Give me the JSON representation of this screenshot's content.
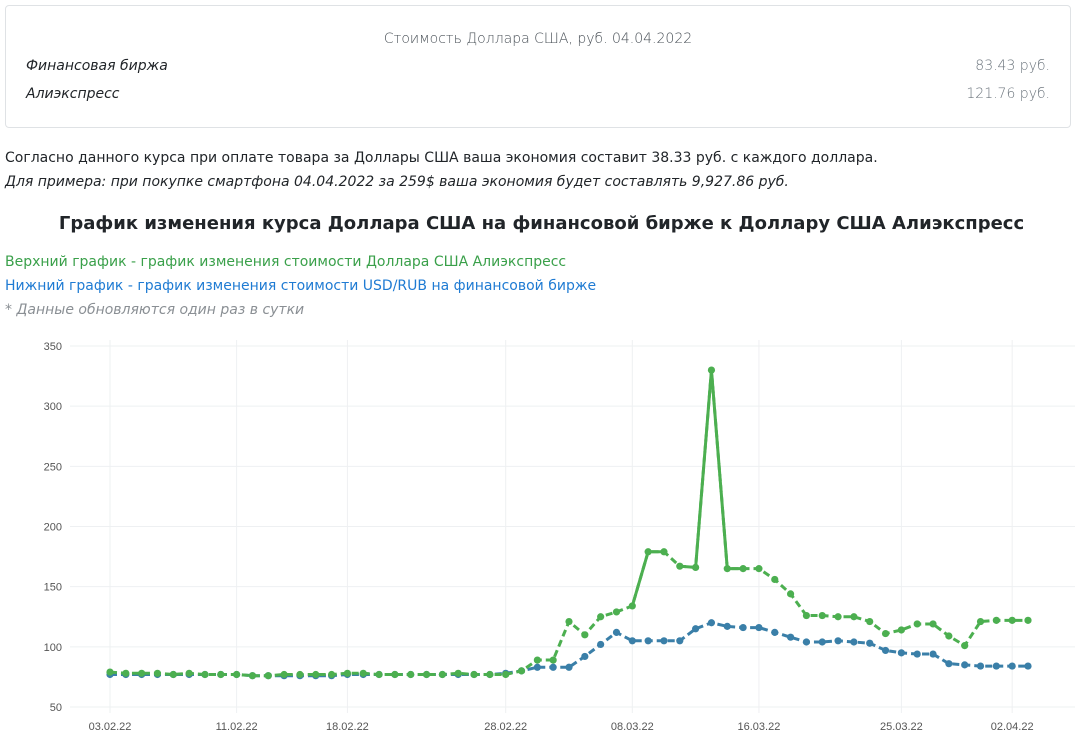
{
  "rate_card": {
    "title": "Стоимость Доллара США, руб. 04.04.2022",
    "rows": [
      {
        "name": "Финансовая биржа",
        "value": "83.43 руб."
      },
      {
        "name": "Алиэкспресс",
        "value": "121.76 руб."
      }
    ]
  },
  "savings_text": "Согласно данного курса при оплате товара за Доллары США ваша экономия составит 38.33 руб. с каждого доллара.",
  "example_text": "Для примера: при покупке смартфона 04.04.2022 за 259$ ваша экономия будет составлять 9,927.86 руб.",
  "chart_title": "График изменения курса Доллара США на финансовой бирже к Доллару США Алиэкспресс",
  "legend": {
    "green": "Верхний график - график изменения стоимости Доллара США Алиэкспресс",
    "blue": "Нижний график - график изменения стоимости USD/RUB на финансовой бирже",
    "note": "* Данные обновляются один раз в сутки"
  },
  "colors": {
    "aliexpress": "#4caf50",
    "exchange": "#3a7fa8"
  },
  "chart_data": {
    "type": "line",
    "x_ticks": [
      "03.02.22",
      "11.02.22",
      "18.02.22",
      "28.02.22",
      "08.03.22",
      "16.03.22",
      "25.03.22",
      "02.04.22"
    ],
    "y_ticks": [
      50,
      100,
      150,
      200,
      250,
      300,
      350
    ],
    "ylim": [
      45,
      355
    ],
    "grid": true,
    "series": [
      {
        "key": "aliexpress",
        "values": [
          79,
          78,
          78,
          78,
          77,
          78,
          77,
          77,
          77,
          76,
          76,
          77,
          77,
          77,
          77,
          78,
          78,
          77,
          77,
          77,
          77,
          77,
          78,
          77,
          77,
          77,
          80,
          89,
          89,
          121,
          110,
          125,
          129,
          134,
          179,
          179,
          167,
          166,
          330,
          165,
          165,
          165,
          156,
          144,
          126,
          126,
          125,
          125,
          121,
          111,
          114,
          119,
          119,
          109,
          101,
          121,
          122,
          122,
          122
        ]
      },
      {
        "key": "exchange",
        "values": [
          77,
          77,
          77,
          77,
          77,
          77,
          77,
          77,
          77,
          76,
          76,
          76,
          76,
          76,
          76,
          77,
          77,
          77,
          77,
          77,
          77,
          77,
          77,
          77,
          77,
          78,
          80,
          83,
          83,
          83,
          92,
          102,
          112,
          105,
          105,
          105,
          105,
          115,
          120,
          117,
          116,
          116,
          112,
          108,
          104,
          104,
          105,
          104,
          103,
          97,
          95,
          94,
          94,
          86,
          85,
          84,
          84,
          84,
          84
        ]
      }
    ]
  }
}
